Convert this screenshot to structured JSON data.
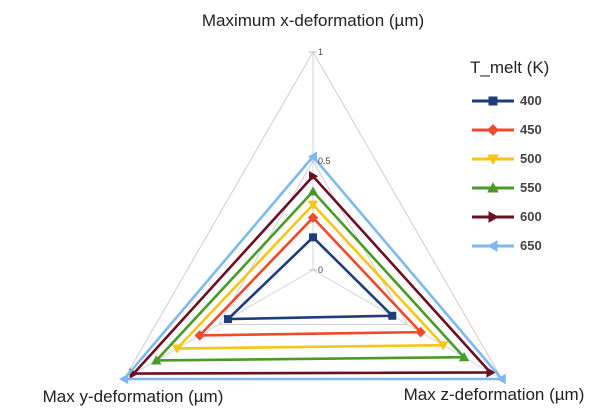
{
  "chart_data": {
    "type": "radar",
    "axes": [
      "Maximum x-deformation (µm)",
      "Max y-deformation (µm)",
      "Max z-deformation (µm)"
    ],
    "rlim": [
      0,
      1
    ],
    "ticks": [
      {
        "value": 0,
        "label": "0"
      },
      {
        "value": 0.5,
        "label": "0.5"
      },
      {
        "value": 1,
        "label": "1"
      }
    ],
    "grid": true,
    "legend_title": "T_melt (K)",
    "legend_position": "right",
    "series": [
      {
        "name": "400",
        "color": "#1f3d7a",
        "marker": "square",
        "values": [
          0.15,
          0.45,
          0.42
        ]
      },
      {
        "name": "450",
        "color": "#f04a2c",
        "marker": "diamond",
        "values": [
          0.24,
          0.6,
          0.57
        ]
      },
      {
        "name": "500",
        "color": "#f5c518",
        "marker": "triangle-down",
        "values": [
          0.3,
          0.72,
          0.69
        ]
      },
      {
        "name": "550",
        "color": "#4a9a2a",
        "marker": "triangle-up",
        "values": [
          0.36,
          0.83,
          0.8
        ]
      },
      {
        "name": "600",
        "color": "#6b0f22",
        "marker": "triangle-right",
        "values": [
          0.43,
          0.95,
          0.94
        ]
      },
      {
        "name": "650",
        "color": "#7fb8ee",
        "marker": "triangle-left",
        "values": [
          0.52,
          1.0,
          1.0
        ]
      }
    ]
  }
}
